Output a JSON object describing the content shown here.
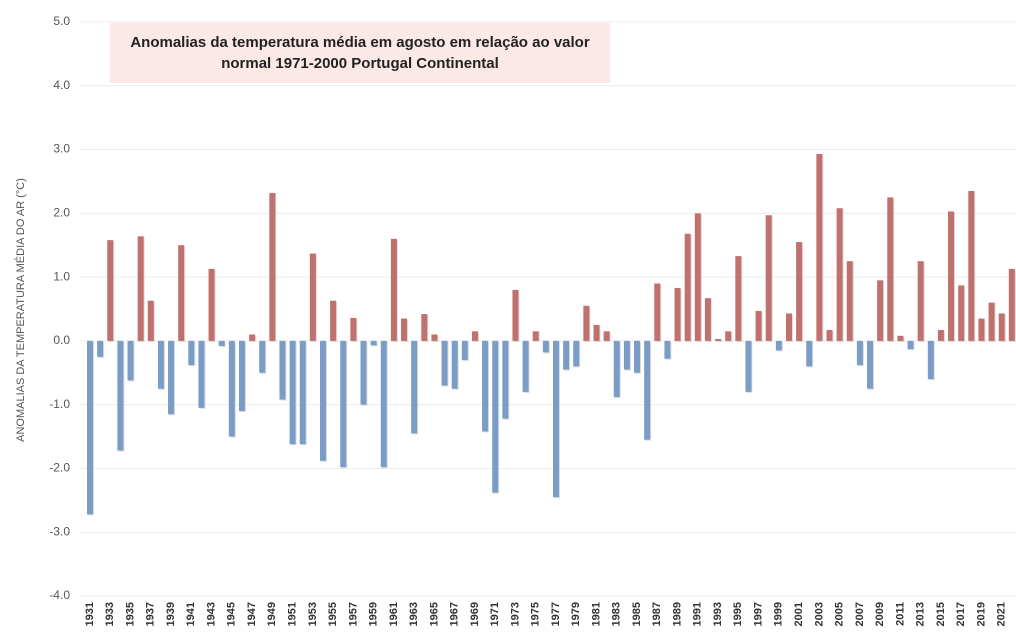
{
  "chart_data": {
    "type": "bar",
    "title": "Anomalias da temperatura média em agosto em relação ao valor normal 1971-2000 Portugal Continental",
    "y_label": "ANOMALIAS DA TEMPERATURA MÉDIA DO AR (°C)",
    "categories": [
      "1931",
      null,
      "1933",
      null,
      "1935",
      null,
      "1937",
      null,
      "1939",
      null,
      "1941",
      null,
      "1943",
      null,
      "1945",
      null,
      "1947",
      null,
      "1949",
      null,
      "1951",
      null,
      "1953",
      null,
      "1955",
      null,
      "1957",
      null,
      "1959",
      null,
      "1961",
      null,
      "1963",
      null,
      "1965",
      null,
      "1967",
      null,
      "1969",
      null,
      "1971",
      null,
      "1973",
      null,
      "1975",
      null,
      "1977",
      null,
      "1979",
      null,
      "1981",
      null,
      "1983",
      null,
      "1985",
      null,
      "1987",
      null,
      "1989",
      null,
      "1991",
      null,
      "1993",
      null,
      "1995",
      null,
      "1997",
      null,
      "1999",
      null,
      "2001",
      null,
      "2003",
      null,
      "2005",
      null,
      "2007",
      null,
      "2009",
      null,
      "2011",
      null,
      "2013",
      null,
      "2015",
      null,
      "2017",
      null,
      "2019",
      null,
      "2021",
      null
    ],
    "values": [
      -2.72,
      -0.25,
      1.58,
      -1.72,
      -0.62,
      1.64,
      0.63,
      -0.75,
      -1.15,
      1.5,
      -0.38,
      -1.05,
      1.13,
      -0.08,
      -1.5,
      -1.1,
      0.1,
      -0.5,
      2.32,
      -0.92,
      -1.62,
      -1.62,
      1.37,
      -1.88,
      0.63,
      -1.98,
      0.36,
      -1.0,
      -0.07,
      -1.98,
      1.6,
      0.35,
      -1.45,
      0.42,
      0.1,
      -0.7,
      -0.75,
      -0.3,
      0.15,
      -1.42,
      -2.38,
      -1.22,
      0.8,
      -0.8,
      0.15,
      -0.18,
      -2.45,
      -0.45,
      -0.4,
      0.55,
      0.25,
      0.15,
      -0.88,
      -0.45,
      -0.5,
      -1.55,
      0.9,
      -0.28,
      0.83,
      1.68,
      2.0,
      0.67,
      0.03,
      0.15,
      1.33,
      -0.8,
      0.47,
      1.97,
      -0.15,
      0.43,
      1.55,
      -0.4,
      2.93,
      0.17,
      2.08,
      1.25,
      -0.38,
      -0.75,
      0.95,
      2.25,
      0.08,
      -0.13,
      1.25,
      -0.6,
      0.17,
      2.03,
      0.87,
      2.35,
      0.35,
      0.6,
      0.43,
      1.13
    ],
    "color_positive": "#c0706d",
    "color_negative": "#7a9dc8",
    "ylim": [
      -4,
      5
    ],
    "yticks": [
      {
        "value": -4,
        "label": "-4.0"
      },
      {
        "value": -3,
        "label": "-3.0"
      },
      {
        "value": -2,
        "label": "-2.0"
      },
      {
        "value": -1,
        "label": "-1.0"
      },
      {
        "value": 0,
        "label": "0.0"
      },
      {
        "value": 1,
        "label": "1.0"
      },
      {
        "value": 2,
        "label": "2.0"
      },
      {
        "value": 3,
        "label": "3.0"
      },
      {
        "value": 4,
        "label": "4.0"
      },
      {
        "value": 5,
        "label": "5.0"
      }
    ],
    "grid": true
  }
}
